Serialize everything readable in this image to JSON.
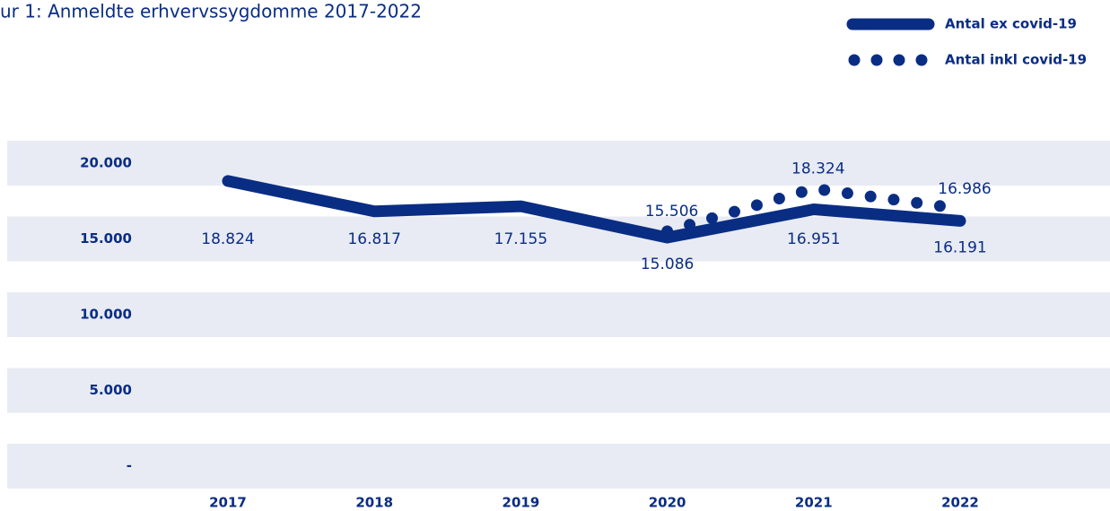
{
  "chart_data": {
    "type": "line",
    "title": "ur 1: Anmeldte erhvervssygdomme 2017-2022",
    "categories": [
      "2017",
      "2018",
      "2019",
      "2020",
      "2021",
      "2022"
    ],
    "series": [
      {
        "name": "Antal ex covid-19",
        "color": "#0a2d84",
        "style": "solid",
        "values": [
          18824,
          16817,
          17155,
          15086,
          16951,
          16191
        ],
        "value_labels": [
          "18.824",
          "16.817",
          "17.155",
          "15.086",
          "16.951",
          "16.191"
        ]
      },
      {
        "name": "Antal inkl covid-19",
        "color": "#0a2d84",
        "style": "dotted",
        "values": [
          null,
          null,
          null,
          15506,
          18324,
          16986
        ],
        "value_labels": [
          null,
          null,
          null,
          "15.506",
          "18.324",
          "16.986"
        ]
      }
    ],
    "ylim": [
      0,
      20000
    ],
    "yticks": [
      {
        "value": 0,
        "label": "-"
      },
      {
        "value": 5000,
        "label": "5.000"
      },
      {
        "value": 10000,
        "label": "10.000"
      },
      {
        "value": 15000,
        "label": "15.000"
      },
      {
        "value": 20000,
        "label": "20.000"
      }
    ],
    "grid": true,
    "legend": "top-right"
  }
}
